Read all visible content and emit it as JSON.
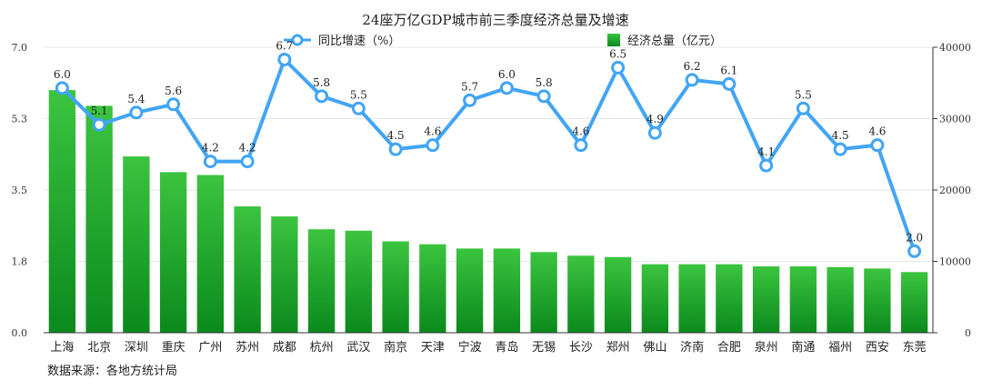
{
  "chart_data": {
    "type": "bar",
    "title": "24座万亿GDP城市前三季度经济总量及增速",
    "source": "数据来源：各地方统计局",
    "categories": [
      "上海",
      "北京",
      "深圳",
      "重庆",
      "广州",
      "苏州",
      "成都",
      "杭州",
      "武汉",
      "南京",
      "天津",
      "宁波",
      "青岛",
      "无锡",
      "长沙",
      "郑州",
      "佛山",
      "济南",
      "合肥",
      "泉州",
      "南通",
      "福州",
      "西安",
      "东莞"
    ],
    "series": [
      {
        "name": "经济总量（亿元）",
        "type": "bar",
        "axis": "right",
        "values": [
          34000,
          31800,
          24700,
          22500,
          22100,
          17700,
          16300,
          14500,
          14300,
          12800,
          12400,
          11800,
          11800,
          11300,
          10800,
          10600,
          9600,
          9600,
          9600,
          9300,
          9300,
          9200,
          9000,
          8500
        ],
        "color": "#1fa12a"
      },
      {
        "name": "同比增速（%）",
        "type": "line",
        "axis": "left",
        "values": [
          6.0,
          5.1,
          5.4,
          5.6,
          4.2,
          4.2,
          6.7,
          5.8,
          5.5,
          4.5,
          4.6,
          5.7,
          6.0,
          5.8,
          4.6,
          6.5,
          4.9,
          6.2,
          6.1,
          4.1,
          5.5,
          4.5,
          4.6,
          2.0
        ],
        "labels": [
          "6.0",
          "5.1",
          "5.4",
          "5.6",
          "4.2",
          "4.2",
          "6.7",
          "5.8",
          "5.5",
          "4.5",
          "4.6",
          "5.7",
          "6.0",
          "5.8",
          "4.6",
          "6.5",
          "4.9",
          "6.2",
          "6.1",
          "4.1",
          "5.5",
          "4.5",
          "4.6",
          "2.0"
        ],
        "color": "#42a5f5"
      }
    ],
    "y_left": {
      "ticks": [
        "0.0",
        "1.8",
        "3.5",
        "5.3",
        "7.0"
      ],
      "ylim": [
        0,
        7.0
      ]
    },
    "y_right": {
      "ticks": [
        "0",
        "10000",
        "20000",
        "30000",
        "40000"
      ],
      "ylim": [
        0,
        40000
      ]
    },
    "legend": {
      "line_label": "同比增速（%）",
      "bar_label": "经济总量（亿元）",
      "placement": "top-center"
    }
  }
}
